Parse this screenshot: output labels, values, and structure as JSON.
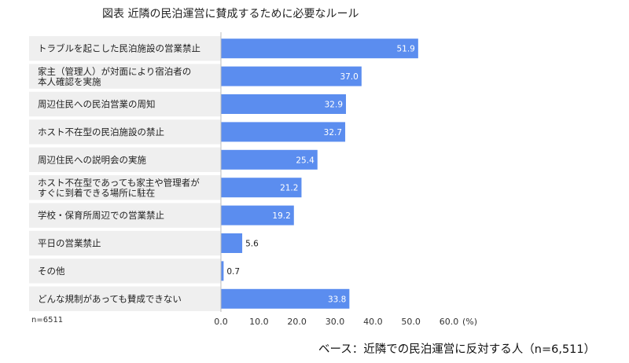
{
  "chart_data": {
    "type": "bar",
    "orientation": "horizontal",
    "title": "図表  近隣の民泊運営に賛成するために必要なルール",
    "categories": [
      [
        "トラブルを起こした民泊施設の営業禁止"
      ],
      [
        "家主（管理人）が対面により宿泊者の",
        "本人確認を実施"
      ],
      [
        "周辺住民への民泊営業の周知"
      ],
      [
        "ホスト不在型の民泊施設の禁止"
      ],
      [
        "周辺住民への説明会の実施"
      ],
      [
        "ホスト不在型であっても家主や管理者が",
        "すぐに到着できる場所に駐在"
      ],
      [
        "学校・保育所周辺での営業禁止"
      ],
      [
        "平日の営業禁止"
      ],
      [
        "その他"
      ],
      [
        "どんな規制があっても賛成できない"
      ]
    ],
    "values": [
      51.9,
      37.0,
      32.9,
      32.7,
      25.4,
      21.2,
      19.2,
      5.6,
      0.7,
      33.8
    ],
    "value_labels": [
      "51.9",
      "37.0",
      "32.9",
      "32.7",
      "25.4",
      "21.2",
      "19.2",
      "5.6",
      "0.7",
      "33.8"
    ],
    "xlim": [
      0,
      60
    ],
    "xticks": [
      "0.0",
      "10.0",
      "20.0",
      "30.0",
      "40.0",
      "50.0",
      "60.0"
    ],
    "unit_label": "(%)",
    "sample_note": "n=6511",
    "base_note": "ベース：近隣での民泊運営に反対する人（n=6,511）",
    "colors": {
      "bar": "#5b8def",
      "band": "#efefef",
      "axis": "#bdbdbd"
    }
  }
}
